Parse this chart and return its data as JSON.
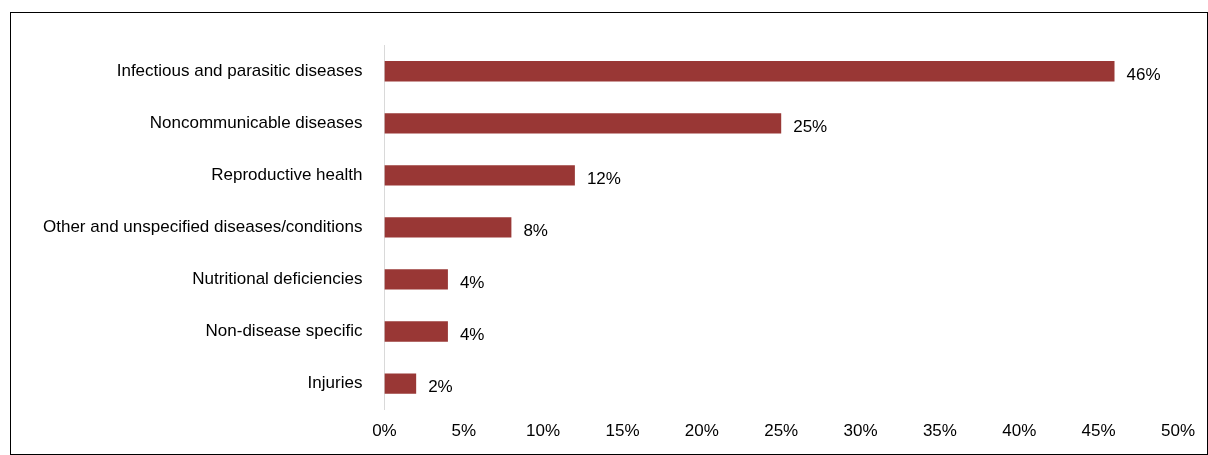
{
  "chart_data": {
    "type": "bar",
    "orientation": "horizontal",
    "categories": [
      "Infectious and parasitic diseases",
      "Noncommunicable diseases",
      "Reproductive health",
      "Other and unspecified diseases/conditions",
      "Nutritional deficiencies",
      "Non-disease specific",
      "Injuries"
    ],
    "values": [
      46,
      25,
      12,
      8,
      4,
      4,
      2
    ],
    "value_labels": [
      "46%",
      "25%",
      "12%",
      "8%",
      "4%",
      "4%",
      "2%"
    ],
    "color": "#993735",
    "xlim": [
      0,
      50
    ],
    "xticks": [
      {
        "value": 0,
        "label": "0%"
      },
      {
        "value": 5,
        "label": "5%"
      },
      {
        "value": 10,
        "label": "10%"
      },
      {
        "value": 15,
        "label": "15%"
      },
      {
        "value": 20,
        "label": "20%"
      },
      {
        "value": 25,
        "label": "25%"
      },
      {
        "value": 30,
        "label": "30%"
      },
      {
        "value": 35,
        "label": "35%"
      },
      {
        "value": 40,
        "label": "40%"
      },
      {
        "value": 45,
        "label": "45%"
      },
      {
        "value": 50,
        "label": "50%"
      }
    ],
    "grid": false,
    "legend": false
  }
}
